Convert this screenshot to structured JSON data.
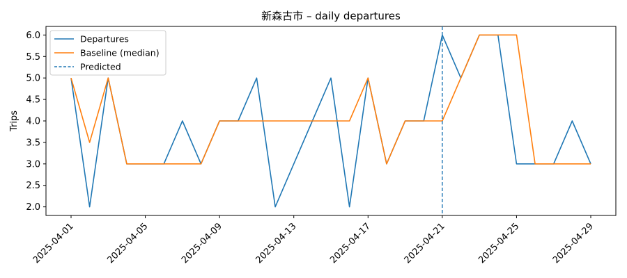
{
  "chart_data": {
    "type": "line",
    "title": "新森古市 – daily departures",
    "xlabel": "",
    "ylabel": "Trips",
    "x": [
      "2025-04-01",
      "2025-04-02",
      "2025-04-03",
      "2025-04-04",
      "2025-04-05",
      "2025-04-06",
      "2025-04-07",
      "2025-04-08",
      "2025-04-09",
      "2025-04-10",
      "2025-04-11",
      "2025-04-12",
      "2025-04-13",
      "2025-04-14",
      "2025-04-15",
      "2025-04-16",
      "2025-04-17",
      "2025-04-18",
      "2025-04-19",
      "2025-04-20",
      "2025-04-21",
      "2025-04-22",
      "2025-04-23",
      "2025-04-24",
      "2025-04-25",
      "2025-04-26",
      "2025-04-27",
      "2025-04-28",
      "2025-04-29"
    ],
    "series": [
      {
        "name": "Departures",
        "color": "#1f77b4",
        "values": [
          5,
          2,
          5,
          3,
          3,
          3,
          4,
          3,
          4,
          4,
          5,
          2,
          3,
          4,
          5,
          2,
          5,
          3,
          4,
          4,
          6,
          5,
          6,
          6,
          3,
          3,
          3,
          4,
          3
        ]
      },
      {
        "name": "Baseline (median)",
        "color": "#ff7f0e",
        "values": [
          5,
          3.5,
          5,
          3,
          3,
          3,
          3,
          3,
          4,
          4,
          4,
          4,
          4,
          4,
          4,
          4,
          5,
          3,
          4,
          4,
          4,
          5,
          6,
          6,
          6,
          3,
          3,
          3,
          3
        ]
      }
    ],
    "marker": {
      "name": "Predicted",
      "x": "2025-04-21",
      "color": "#1f77b4",
      "style": "dashed"
    },
    "xticks": [
      "2025-04-01",
      "2025-04-05",
      "2025-04-09",
      "2025-04-13",
      "2025-04-17",
      "2025-04-21",
      "2025-04-25",
      "2025-04-29"
    ],
    "yticks": [
      "2.0",
      "2.5",
      "3.0",
      "3.5",
      "4.0",
      "4.5",
      "5.0",
      "5.5",
      "6.0"
    ],
    "ylim": [
      1.8,
      6.2
    ],
    "grid": false,
    "legend": "top-left"
  }
}
